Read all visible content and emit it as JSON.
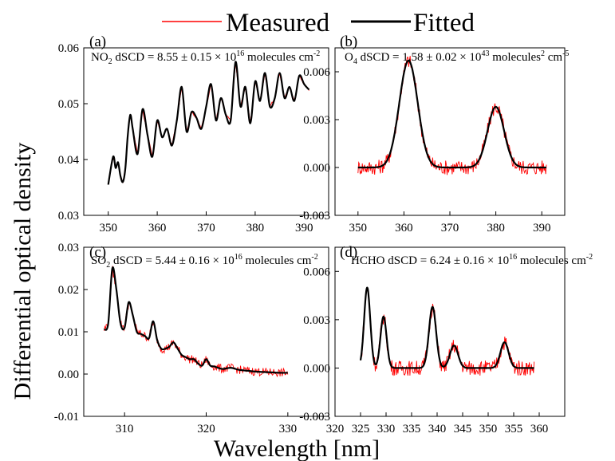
{
  "legend": {
    "position": "top",
    "entries": [
      {
        "label": "Measured",
        "color": "#ff0000"
      },
      {
        "label": "Fitted",
        "color": "#000000"
      }
    ]
  },
  "axes": {
    "ylabel": "Differential optical density",
    "xlabel": "Wavelength [nm]"
  },
  "chart_data": [
    {
      "type": "line",
      "panel": "(a)",
      "annotation": {
        "species": "NO",
        "sub": "2",
        "text": " dSCD = 8.55 ± 0.15 × 10",
        "exp": "16",
        "unit": " molecules cm",
        "unit_exp": "-2"
      },
      "xlim": [
        345,
        395
      ],
      "ylim": [
        0.03,
        0.06
      ],
      "xticks": [
        "350",
        "360",
        "370",
        "380",
        "390"
      ],
      "yticks": [
        "0.03",
        "0.04",
        "0.05",
        "0.06"
      ],
      "x_range": [
        350,
        391
      ],
      "series": [
        {
          "name": "Measured",
          "color": "#ff0000"
        },
        {
          "name": "Fitted",
          "color": "#000000",
          "x": [
            350,
            351,
            351.5,
            352,
            352.5,
            353,
            353.5,
            354,
            354.5,
            355,
            356,
            357,
            358,
            359,
            360,
            361,
            362,
            363,
            364,
            365,
            366,
            367,
            368,
            369,
            370,
            371,
            372,
            373,
            374,
            375,
            376,
            377,
            378,
            379,
            380,
            381,
            382,
            383,
            384,
            385,
            386,
            387,
            388,
            389,
            390,
            391
          ],
          "y": [
            0.0355,
            0.0405,
            0.0385,
            0.0395,
            0.037,
            0.036,
            0.0385,
            0.0445,
            0.048,
            0.0455,
            0.041,
            0.049,
            0.0445,
            0.0405,
            0.047,
            0.044,
            0.0455,
            0.0425,
            0.047,
            0.053,
            0.045,
            0.0485,
            0.0475,
            0.0455,
            0.0495,
            0.0535,
            0.047,
            0.051,
            0.048,
            0.047,
            0.0575,
            0.0495,
            0.053,
            0.0465,
            0.054,
            0.0505,
            0.0555,
            0.0495,
            0.051,
            0.0555,
            0.051,
            0.053,
            0.0505,
            0.055,
            0.0535,
            0.0525
          ]
        }
      ]
    },
    {
      "type": "line",
      "panel": "(b)",
      "annotation": {
        "species": "O",
        "sub": "4",
        "text": " dSCD = 1.58 ± 0.02 × 10",
        "exp": "43",
        "unit": " molecules",
        "unit_exp": "2",
        "unit2": " cm",
        "unit2_exp": "-5"
      },
      "xlim": [
        345,
        395
      ],
      "ylim": [
        -0.003,
        0.0075
      ],
      "xticks": [
        "350",
        "360",
        "370",
        "380",
        "390"
      ],
      "yticks": [
        "-0.003",
        "0.000",
        "0.003",
        "0.006"
      ],
      "x_range": [
        350,
        391
      ],
      "peaks": [
        {
          "center": 361,
          "height": 0.0067,
          "width": 2.0
        },
        {
          "center": 380,
          "height": 0.0038,
          "width": 1.8
        }
      ],
      "series": [
        {
          "name": "Measured",
          "color": "#ff0000"
        },
        {
          "name": "Fitted",
          "color": "#000000"
        }
      ]
    },
    {
      "type": "line",
      "panel": "(c)",
      "annotation": {
        "species": "SO",
        "sub": "2",
        "text": " dSCD = 5.44 ± 0.16 × 10",
        "exp": "16",
        "unit": " molecules cm",
        "unit_exp": "-2"
      },
      "xlim": [
        305,
        335
      ],
      "ylim": [
        -0.01,
        0.03
      ],
      "xticks": [
        "310",
        "320",
        "330"
      ],
      "yticks": [
        "-0.01",
        "0.00",
        "0.01",
        "0.02",
        "0.03"
      ],
      "x_range": [
        307.5,
        330
      ],
      "series": [
        {
          "name": "Measured",
          "color": "#ff0000"
        },
        {
          "name": "Fitted",
          "color": "#000000",
          "x": [
            307.5,
            308,
            308.5,
            309,
            309.5,
            310,
            310.5,
            311,
            311.5,
            312,
            312.5,
            313,
            313.5,
            314,
            314.5,
            315,
            315.5,
            316,
            316.5,
            317,
            317.5,
            318,
            318.5,
            319,
            319.5,
            320,
            320.5,
            321,
            322,
            323,
            324,
            325,
            326,
            327,
            328,
            329,
            330
          ],
          "y": [
            0.0105,
            0.012,
            0.025,
            0.02,
            0.012,
            0.011,
            0.017,
            0.014,
            0.01,
            0.0095,
            0.009,
            0.0085,
            0.0125,
            0.008,
            0.006,
            0.006,
            0.0065,
            0.0075,
            0.006,
            0.0045,
            0.004,
            0.0035,
            0.0035,
            0.0025,
            0.002,
            0.0035,
            0.002,
            0.0018,
            0.0012,
            0.0015,
            0.001,
            0.0008,
            0.0006,
            0.0005,
            0.0004,
            0.0003,
            0.0003
          ]
        }
      ]
    },
    {
      "type": "line",
      "panel": "(d)",
      "annotation": {
        "species": "HCHO",
        "sub": "",
        "text": " dSCD = 6.24 ± 0.16 × 10",
        "exp": "16",
        "unit": " molecules cm",
        "unit_exp": "-2"
      },
      "xlim": [
        320,
        365
      ],
      "ylim": [
        -0.003,
        0.0075
      ],
      "xticks": [
        "320",
        "325",
        "330",
        "335",
        "340",
        "345",
        "350",
        "355",
        "360"
      ],
      "yticks": [
        "-0.003",
        "0.000",
        "0.003",
        "0.006"
      ],
      "x_range": [
        325,
        359
      ],
      "peaks": [
        {
          "center": 326.3,
          "height": 0.005,
          "width": 0.6
        },
        {
          "center": 329.5,
          "height": 0.0032,
          "width": 0.6
        },
        {
          "center": 339.1,
          "height": 0.0038,
          "width": 0.7
        },
        {
          "center": 343.3,
          "height": 0.0014,
          "width": 0.8
        },
        {
          "center": 353.2,
          "height": 0.0016,
          "width": 0.8
        }
      ],
      "series": [
        {
          "name": "Measured",
          "color": "#ff0000"
        },
        {
          "name": "Fitted",
          "color": "#000000"
        }
      ]
    }
  ]
}
